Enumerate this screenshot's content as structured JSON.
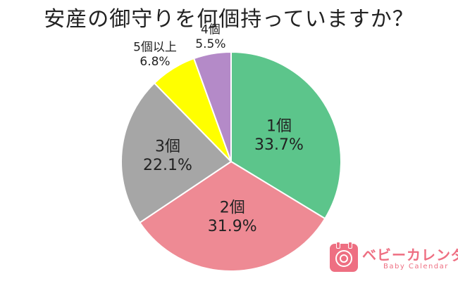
{
  "title": "安産の御守りを何個持っていますか？",
  "chart_data": {
    "type": "pie",
    "title": "安産の御守りを何個持っていますか？",
    "start": "12 o'clock, clockwise",
    "slices": [
      {
        "label": "1個",
        "value": 33.7,
        "value_text": "33.7%",
        "color": "#5cc58b"
      },
      {
        "label": "2個",
        "value": 31.9,
        "value_text": "31.9%",
        "color": "#ee8a94"
      },
      {
        "label": "3個",
        "value": 22.1,
        "value_text": "22.1%",
        "color": "#a6a6a6"
      },
      {
        "label": "5個以上",
        "value": 6.8,
        "value_text": "6.8%",
        "color": "#ffff00"
      },
      {
        "label": "4個",
        "value": 5.5,
        "value_text": "5.5%",
        "color": "#b48ac8"
      }
    ]
  },
  "logo": {
    "name": "ベビーカレンダー",
    "sub": "Baby Calendar",
    "icon": "baby-calendar-logo-icon",
    "color": "#ee6f82"
  }
}
